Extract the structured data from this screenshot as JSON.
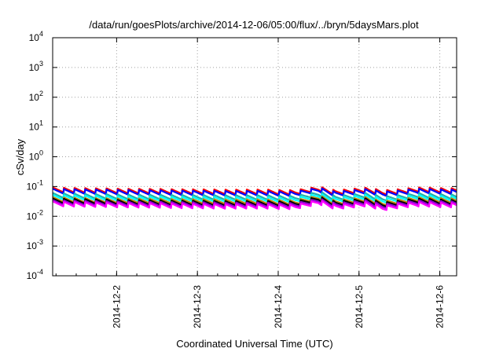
{
  "chart_data": {
    "type": "line",
    "title": "/data/run/goesPlots/archive/2014-12-06/05:00/flux/../bryn/5daysMars.plot",
    "xlabel": "Coordinated Universal Time (UTC)",
    "ylabel": "cSv/day",
    "yscale": "log",
    "ylim": [
      0.0001,
      10000
    ],
    "xlim": [
      "2014-12-01T05:00",
      "2014-12-06T05:00"
    ],
    "y_tick_labels": [
      {
        "base": "10",
        "exp": "-4"
      },
      {
        "base": "10",
        "exp": "-3"
      },
      {
        "base": "10",
        "exp": "-2"
      },
      {
        "base": "10",
        "exp": "-1"
      },
      {
        "base": "10",
        "exp": "0"
      },
      {
        "base": "10",
        "exp": "1"
      },
      {
        "base": "10",
        "exp": "2"
      },
      {
        "base": "10",
        "exp": "3"
      },
      {
        "base": "10",
        "exp": "4"
      }
    ],
    "x_tick_labels": [
      "2014-12-2",
      "2014-12-3",
      "2014-12-4",
      "2014-12-5",
      "2014-12-6"
    ],
    "grid": true,
    "sawtooth_period_hours": 3.2,
    "series_x": [
      "2014-12-01T05:00",
      "2014-12-01T17:00",
      "2014-12-02T05:00",
      "2014-12-02T17:00",
      "2014-12-03T05:00",
      "2014-12-03T17:00",
      "2014-12-04T05:00",
      "2014-12-04T12:00",
      "2014-12-04T17:00",
      "2014-12-05T02:00",
      "2014-12-05T07:00",
      "2014-12-05T12:00",
      "2014-12-05T17:00",
      "2014-12-06T05:00"
    ],
    "series": [
      {
        "color": "#ff0000",
        "values": [
          0.08,
          0.075,
          0.072,
          0.07,
          0.068,
          0.068,
          0.065,
          0.085,
          0.065,
          0.078,
          0.065,
          0.07,
          0.08,
          0.075
        ]
      },
      {
        "color": "#0000ff",
        "values": [
          0.072,
          0.068,
          0.065,
          0.063,
          0.061,
          0.061,
          0.058,
          0.078,
          0.058,
          0.07,
          0.058,
          0.063,
          0.072,
          0.067
        ]
      },
      {
        "color": "#20b2aa",
        "values": [
          0.052,
          0.048,
          0.046,
          0.045,
          0.044,
          0.044,
          0.042,
          0.058,
          0.042,
          0.052,
          0.04,
          0.045,
          0.052,
          0.046
        ]
      },
      {
        "color": "#00ffff",
        "values": [
          0.045,
          0.042,
          0.04,
          0.039,
          0.038,
          0.038,
          0.036,
          0.05,
          0.036,
          0.045,
          0.034,
          0.039,
          0.045,
          0.04
        ]
      },
      {
        "color": "#b8860b",
        "values": [
          0.038,
          0.035,
          0.034,
          0.033,
          0.032,
          0.032,
          0.03,
          0.043,
          0.03,
          0.038,
          0.028,
          0.033,
          0.038,
          0.034
        ]
      },
      {
        "color": "#000000",
        "values": [
          0.034,
          0.032,
          0.03,
          0.029,
          0.028,
          0.028,
          0.027,
          0.039,
          0.027,
          0.034,
          0.025,
          0.029,
          0.034,
          0.03
        ]
      },
      {
        "color": "#9400d3",
        "values": [
          0.03,
          0.028,
          0.027,
          0.026,
          0.025,
          0.025,
          0.024,
          0.034,
          0.024,
          0.03,
          0.022,
          0.026,
          0.03,
          0.027
        ]
      },
      {
        "color": "#ff00ff",
        "values": [
          0.027,
          0.025,
          0.024,
          0.023,
          0.022,
          0.022,
          0.021,
          0.03,
          0.021,
          0.026,
          0.019,
          0.023,
          0.026,
          0.024
        ]
      }
    ]
  }
}
